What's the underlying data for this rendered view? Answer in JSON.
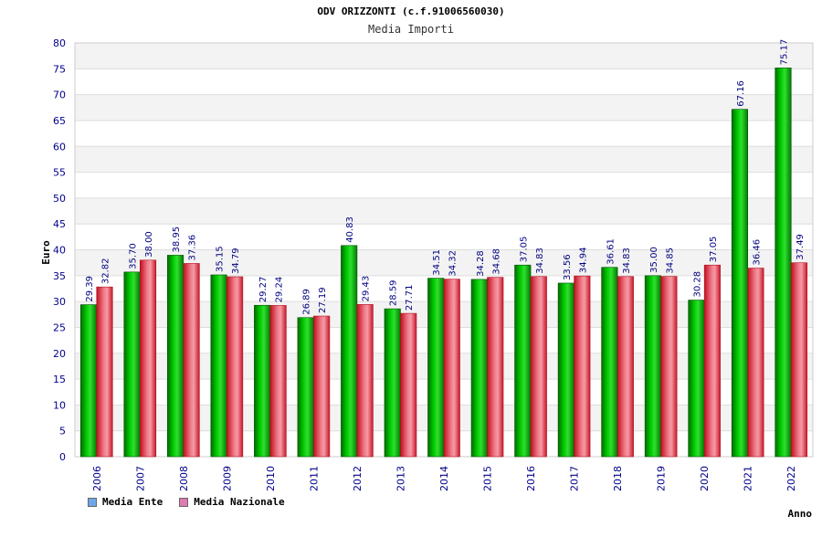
{
  "title": "ODV ORIZZONTI (c.f.91006560030)",
  "subtitle": "Media Importi",
  "legend": {
    "ente_label": "Media Ente",
    "nazionale_label": "Media Nazionale",
    "ente_swatch_color": "#6fa8e8",
    "nazionale_swatch_color": "#e07ab0"
  },
  "chart_data": {
    "type": "bar",
    "xlabel": "Anno",
    "ylabel": "Euro",
    "ylim": [
      0,
      80
    ],
    "ytick_step": 5,
    "grid": true,
    "legend_position": "bottom-left",
    "categories": [
      "2006",
      "2007",
      "2008",
      "2009",
      "2010",
      "2011",
      "2012",
      "2013",
      "2014",
      "2015",
      "2016",
      "2017",
      "2018",
      "2019",
      "2020",
      "2021",
      "2022"
    ],
    "series": [
      {
        "name": "Media Ente",
        "color": "#00b000",
        "values": [
          29.39,
          35.7,
          38.95,
          35.15,
          29.27,
          26.89,
          40.83,
          28.59,
          34.51,
          34.28,
          37.05,
          33.56,
          36.61,
          35.0,
          30.28,
          67.16,
          75.17
        ],
        "labels": [
          "29.39",
          "35.70",
          "38.95",
          "35.15",
          "29.27",
          "26.89",
          "40.83",
          "28.59",
          "34.51",
          "34.28",
          "37.05",
          "33.56",
          "36.61",
          "35.00",
          "30.28",
          "67.16",
          "75.17"
        ]
      },
      {
        "name": "Media Nazionale",
        "color": "#e03040",
        "values": [
          32.82,
          38.0,
          37.36,
          34.79,
          29.24,
          27.19,
          29.43,
          27.71,
          34.32,
          34.68,
          34.83,
          34.94,
          34.83,
          34.85,
          37.05,
          36.46,
          37.49
        ],
        "labels": [
          "32.82",
          "38.00",
          "37.36",
          "34.79",
          "29.24",
          "27.19",
          "29.43",
          "27.71",
          "34.32",
          "34.68",
          "34.83",
          "34.94",
          "34.83",
          "34.85",
          "37.05",
          "36.46",
          "37.49"
        ]
      }
    ]
  }
}
